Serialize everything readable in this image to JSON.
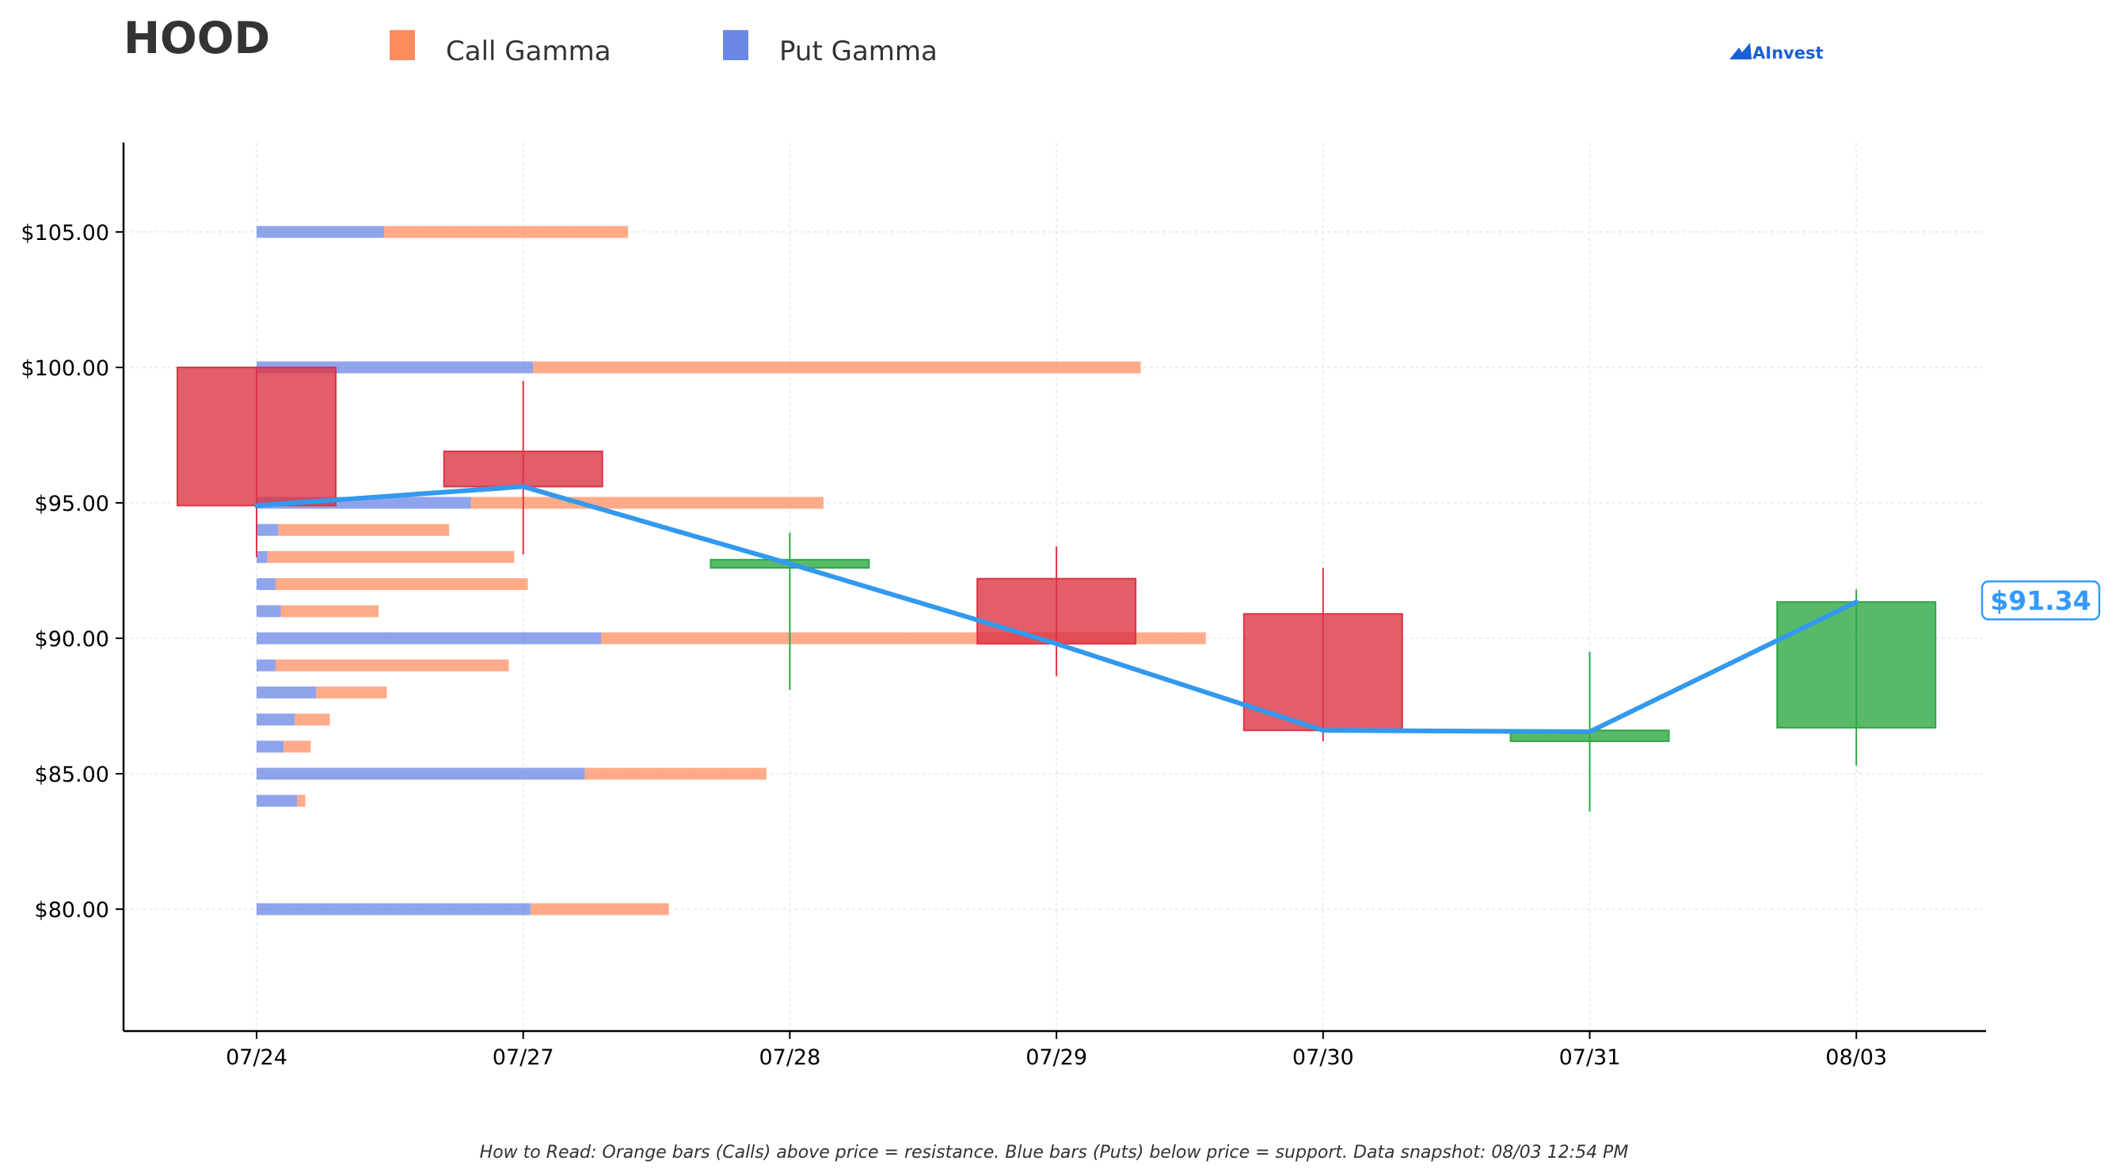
{
  "ticker": "HOOD",
  "brand": "AInvest",
  "footnote": "How to Read: Orange bars (Calls) above price = resistance. Blue bars (Puts) below price = support. Data snapshot: 08/03 12:54 PM",
  "colors": {
    "call": "#ff8a5c",
    "put": "#6b86e6",
    "up": "#2ea844",
    "down": "#dc3545",
    "price_line": "#3399ee"
  },
  "chart_data": {
    "type": "candlestick-with-gamma-bars",
    "title": "HOOD",
    "legend": [
      {
        "name": "Call Gamma",
        "color": "#ff8a5c"
      },
      {
        "name": "Put Gamma",
        "color": "#6b86e6"
      }
    ],
    "legend_position": "top-left",
    "x_categories": [
      "07/24",
      "07/27",
      "07/28",
      "07/29",
      "07/30",
      "07/31",
      "08/03"
    ],
    "y_range": [
      75.5,
      108.3
    ],
    "y_ticks": [
      80,
      85,
      90,
      95,
      100,
      105
    ],
    "y_tick_labels": [
      "$80.00",
      "$85.00",
      "$90.00",
      "$95.00",
      "$100.00",
      "$105.00"
    ],
    "grid": true,
    "candles": [
      {
        "date": "07/24",
        "open": 100.0,
        "high": 100.0,
        "low": 93.0,
        "close": 94.9
      },
      {
        "date": "07/27",
        "open": 96.9,
        "high": 99.5,
        "low": 93.1,
        "close": 95.6
      },
      {
        "date": "07/28",
        "open": 92.6,
        "high": 93.9,
        "low": 88.1,
        "close": 92.9
      },
      {
        "date": "07/29",
        "open": 92.2,
        "high": 93.4,
        "low": 88.6,
        "close": 89.8
      },
      {
        "date": "07/30",
        "open": 90.9,
        "high": 92.6,
        "low": 86.2,
        "close": 86.6
      },
      {
        "date": "07/31",
        "open": 86.2,
        "high": 89.5,
        "low": 83.6,
        "close": 86.6
      },
      {
        "date": "08/03",
        "open": 86.7,
        "high": 91.8,
        "low": 85.3,
        "close": 91.34
      }
    ],
    "price_line": [
      {
        "date": "07/24",
        "value": 94.9
      },
      {
        "date": "07/27",
        "value": 95.6
      },
      {
        "date": "07/28",
        "value": 92.75
      },
      {
        "date": "07/29",
        "value": 89.8
      },
      {
        "date": "07/30",
        "value": 86.6
      },
      {
        "date": "07/31",
        "value": 86.55
      },
      {
        "date": "08/03",
        "value": 91.34
      }
    ],
    "last_price_label": "$91.34",
    "gamma_levels": [
      {
        "strike": 105,
        "put": 0.47,
        "call": 0.9
      },
      {
        "strike": 100,
        "put": 1.02,
        "call": 2.24
      },
      {
        "strike": 95,
        "put": 0.79,
        "call": 1.3
      },
      {
        "strike": 94,
        "put": 0.08,
        "call": 0.63
      },
      {
        "strike": 93,
        "put": 0.04,
        "call": 0.91
      },
      {
        "strike": 92,
        "put": 0.07,
        "call": 0.93
      },
      {
        "strike": 91,
        "put": 0.09,
        "call": 0.36
      },
      {
        "strike": 90,
        "put": 1.27,
        "call": 2.23
      },
      {
        "strike": 89,
        "put": 0.07,
        "call": 0.86
      },
      {
        "strike": 88,
        "put": 0.22,
        "call": 0.26
      },
      {
        "strike": 87,
        "put": 0.14,
        "call": 0.13
      },
      {
        "strike": 86,
        "put": 0.1,
        "call": 0.1
      },
      {
        "strike": 85,
        "put": 1.21,
        "call": 0.67
      },
      {
        "strike": 84,
        "put": 0.15,
        "call": 0.03
      },
      {
        "strike": 80,
        "put": 1.01,
        "call": 0.51
      }
    ]
  }
}
